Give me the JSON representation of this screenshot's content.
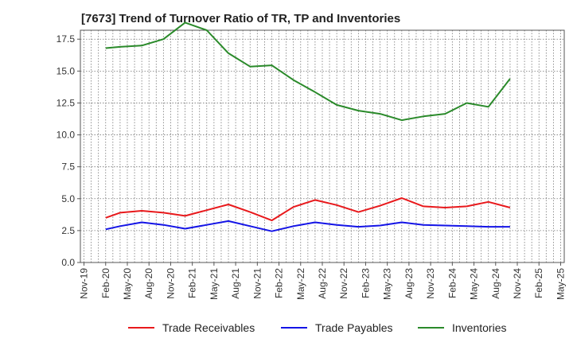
{
  "chart_data": {
    "type": "line",
    "title": "[7673]  Trend of Turnover Ratio of TR, TP and Inventories",
    "xlabel": "",
    "ylabel": "",
    "x_tick_labels": [
      "Nov-19",
      "Feb-20",
      "May-20",
      "Aug-20",
      "Nov-20",
      "Feb-21",
      "May-21",
      "Aug-21",
      "Nov-21",
      "Feb-22",
      "May-22",
      "Aug-22",
      "Nov-22",
      "Feb-23",
      "May-23",
      "Aug-23",
      "Nov-23",
      "Feb-24",
      "May-24",
      "Aug-24",
      "Nov-24",
      "Feb-25",
      "May-25"
    ],
    "y_tick_labels": [
      "0.0",
      "2.5",
      "5.0",
      "7.5",
      "10.0",
      "12.5",
      "15.0",
      "17.5"
    ],
    "ylim": [
      0,
      18.2
    ],
    "grid": true,
    "legend_position": "bottom",
    "categories": [
      "Feb-20",
      "Apr-20",
      "Jul-20",
      "Oct-20",
      "Jan-21",
      "Apr-21",
      "Jul-21",
      "Oct-21",
      "Jan-22",
      "Apr-22",
      "Jul-22",
      "Oct-22",
      "Jan-23",
      "Apr-23",
      "Jul-23",
      "Oct-23",
      "Jan-24",
      "Apr-24",
      "Jul-24",
      "Oct-24"
    ],
    "series": [
      {
        "name": "Trade Receivables",
        "color": "#e8191c",
        "values": [
          3.5,
          3.9,
          4.05,
          3.9,
          3.65,
          4.1,
          4.55,
          3.95,
          3.3,
          4.35,
          4.9,
          4.5,
          3.95,
          4.45,
          5.05,
          4.4,
          4.3,
          4.4,
          4.75,
          4.3
        ]
      },
      {
        "name": "Trade Payables",
        "color": "#1414e6",
        "values": [
          2.6,
          2.85,
          3.15,
          2.95,
          2.65,
          2.95,
          3.25,
          2.85,
          2.45,
          2.85,
          3.15,
          2.95,
          2.8,
          2.9,
          3.15,
          2.95,
          2.9,
          2.85,
          2.8,
          2.8
        ]
      },
      {
        "name": "Inventories",
        "color": "#2a8a2a",
        "values": [
          16.8,
          16.9,
          17.0,
          17.5,
          18.8,
          18.2,
          16.4,
          15.35,
          15.45,
          14.3,
          13.35,
          12.35,
          11.9,
          11.65,
          11.15,
          11.45,
          11.65,
          12.5,
          12.2,
          14.4
        ]
      }
    ]
  }
}
